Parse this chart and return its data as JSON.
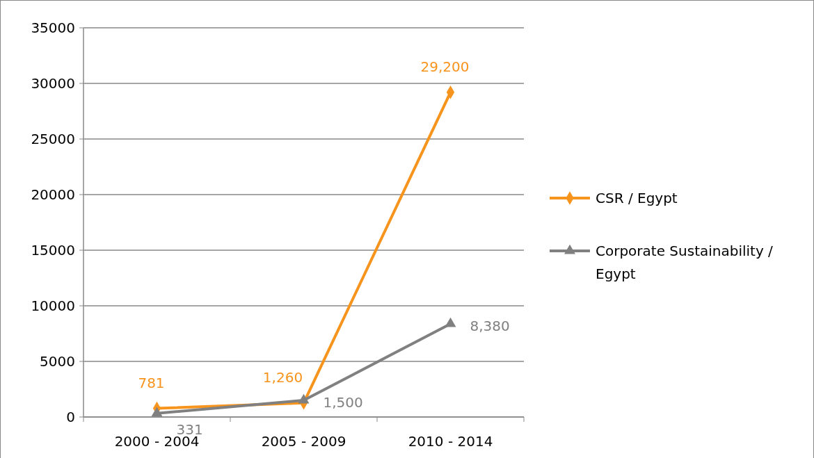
{
  "chart_data": {
    "type": "line",
    "categories": [
      "2000 - 2004",
      "2005 - 2009",
      "2010 - 2014"
    ],
    "series": [
      {
        "name": "CSR / Egypt",
        "color": "#f7941d",
        "marker": "diamond",
        "values": [
          781,
          1260,
          29200
        ],
        "value_labels": [
          "781",
          "1,260",
          "29,200"
        ]
      },
      {
        "name": "Corporate Sustainability / Egypt",
        "color": "#808080",
        "marker": "triangle",
        "values": [
          331,
          1500,
          8380
        ],
        "value_labels": [
          "331",
          "1,500",
          "8,380"
        ]
      }
    ],
    "ylim": [
      0,
      35000
    ],
    "yticks": [
      0,
      5000,
      10000,
      15000,
      20000,
      25000,
      30000,
      35000
    ],
    "grid": "y",
    "legend": "right",
    "line_style": "solid"
  }
}
